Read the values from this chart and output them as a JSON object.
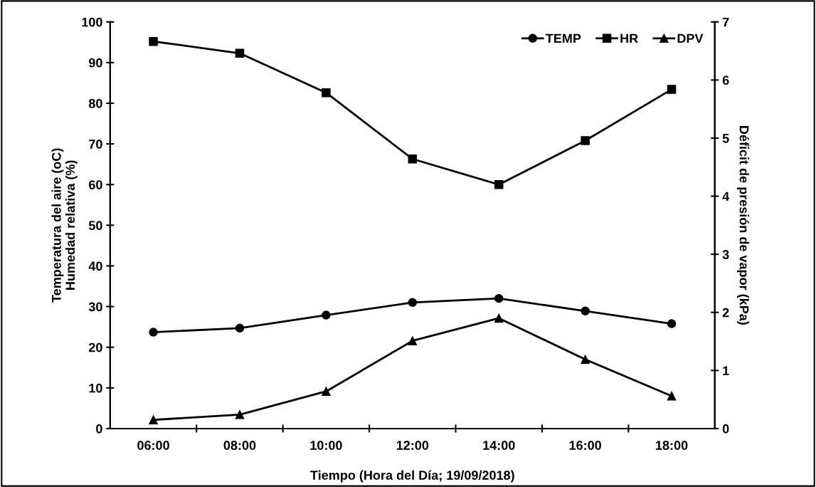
{
  "chart_data": {
    "type": "line",
    "xlabel": "Tiempo (Hora del Día; 19/09/2018)",
    "ylabel": "Temperatura del aire (oC)\nHumedad relativa (%)",
    "y2label": "Déficit de presión de vapor (kPa)",
    "categories": [
      "06:00",
      "08:00",
      "10:00",
      "12:00",
      "14:00",
      "16:00",
      "18:00"
    ],
    "series": [
      {
        "name": "TEMP",
        "color": "#000000",
        "marker": "circle",
        "values": [
          23.7,
          24.7,
          27.9,
          31.0,
          32.0,
          28.9,
          25.8
        ]
      },
      {
        "name": "HR",
        "color": "#000000",
        "marker": "square",
        "values": [
          95.2,
          92.3,
          82.6,
          66.3,
          60.0,
          70.8,
          83.4
        ]
      },
      {
        "name": "DPV",
        "color": "#000000",
        "marker": "triangle",
        "axis": "y2",
        "values": [
          0.15,
          0.24,
          0.64,
          1.51,
          1.9,
          1.19,
          0.56
        ]
      }
    ],
    "ylim": [
      0,
      100
    ],
    "yticks": [
      0,
      10,
      20,
      30,
      40,
      50,
      60,
      70,
      80,
      90,
      100
    ],
    "y2lim": [
      0,
      7
    ],
    "y2ticks": [
      0,
      1,
      2,
      3,
      4,
      5,
      6,
      7
    ],
    "legend": "top right",
    "grid": false,
    "line_style": "solid"
  }
}
